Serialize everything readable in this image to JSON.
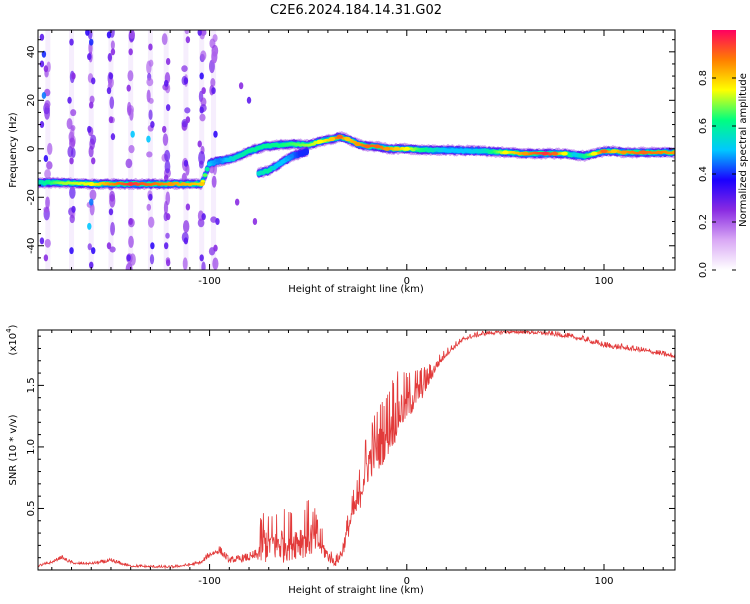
{
  "title": "C2E6.2024.184.14.31.G02",
  "chart_data": [
    {
      "type": "heatmap",
      "xlabel": "Height of straight line (km)",
      "ylabel": "Frequency (Hz)",
      "xlim": [
        -187,
        136
      ],
      "ylim": [
        -50,
        49
      ],
      "x_ticks": [
        -100,
        0,
        100
      ],
      "y_ticks": [
        -40,
        -20,
        0,
        20,
        40
      ],
      "colorbar": {
        "label": "Normalized spectral amplitude",
        "range": [
          0,
          1
        ],
        "ticks": [
          "0.0",
          "0.2",
          "0.4",
          "0.6",
          "0.8"
        ],
        "colors": [
          "#ffffff",
          "#d9a8f5",
          "#8a2be2",
          "#1a00ff",
          "#00c8ff",
          "#00ff80",
          "#ffff00",
          "#ff7f00",
          "#ff0060"
        ]
      },
      "ridge": {
        "x": [
          -187,
          -175,
          -160,
          -140,
          -120,
          -104,
          -100,
          -95,
          -88,
          -80,
          -72,
          -65,
          -58,
          -50,
          -44,
          -38,
          -34,
          -30,
          -25,
          -20,
          -15,
          -10,
          -5,
          0,
          10,
          20,
          30,
          40,
          50,
          60,
          70,
          75,
          80,
          85,
          90,
          95,
          100,
          105,
          110,
          120,
          136
        ],
        "y": [
          -14,
          -14,
          -14.5,
          -14.5,
          -14.5,
          -14.5,
          -6,
          -5,
          -4,
          -1,
          1,
          1.5,
          2,
          1.5,
          3,
          4,
          5,
          4,
          2,
          1,
          1,
          0,
          0,
          0,
          -0.5,
          -0.5,
          -0.8,
          -1,
          -1.5,
          -2,
          -2,
          -2,
          -2,
          -2.5,
          -3,
          -2,
          -1,
          -1,
          -1.5,
          -1.5,
          -1.5
        ],
        "amplitude": [
          0.55,
          0.7,
          0.75,
          0.95,
          0.85,
          0.8,
          0.5,
          0.45,
          0.55,
          0.6,
          0.6,
          0.62,
          0.65,
          0.7,
          0.75,
          0.8,
          0.9,
          0.8,
          0.85,
          0.9,
          0.9,
          0.85,
          0.8,
          0.75,
          0.6,
          0.5,
          0.5,
          0.55,
          0.75,
          0.85,
          0.95,
          0.9,
          0.75,
          0.5,
          0.6,
          0.75,
          0.9,
          0.8,
          0.85,
          0.9,
          0.85
        ]
      },
      "branch": {
        "x": [
          -75,
          -70,
          -66,
          -62,
          -58,
          -54,
          -50
        ],
        "y": [
          -10,
          -9,
          -7,
          -5,
          -3,
          -2,
          -1
        ],
        "amplitude": [
          0.55,
          0.6,
          0.5,
          0.5,
          0.45,
          0.4,
          0.4
        ]
      },
      "noise_columns": [
        -182,
        -170,
        -160,
        -150,
        -140,
        -130,
        -122,
        -112,
        -104,
        -98
      ],
      "noise_specks": [
        [
          -185,
          46,
          0.3
        ],
        [
          -184,
          39,
          0.4
        ],
        [
          -185,
          35,
          0.3
        ],
        [
          -183,
          33,
          0.25
        ],
        [
          -184,
          22,
          0.45
        ],
        [
          -185,
          10,
          0.3
        ],
        [
          -183,
          -4,
          0.35
        ],
        [
          -185,
          -38,
          0.3
        ],
        [
          -183,
          -45,
          0.25
        ],
        [
          -170,
          44,
          0.3
        ],
        [
          -169,
          30,
          0.25
        ],
        [
          -171,
          20,
          0.3
        ],
        [
          -170,
          -5,
          0.25
        ],
        [
          -169,
          -25,
          0.3
        ],
        [
          -170,
          -42,
          0.35
        ],
        [
          -162,
          48,
          0.35
        ],
        [
          -160,
          44,
          0.4
        ],
        [
          -161,
          38,
          0.3
        ],
        [
          -159,
          28,
          0.3
        ],
        [
          -160,
          18,
          0.25
        ],
        [
          -161,
          8,
          0.3
        ],
        [
          -159,
          -5,
          0.25
        ],
        [
          -160,
          -22,
          0.45
        ],
        [
          -161,
          -32,
          0.5
        ],
        [
          -159,
          -42,
          0.35
        ],
        [
          -160,
          -48,
          0.3
        ],
        [
          -151,
          47,
          0.35
        ],
        [
          -149,
          40,
          0.25
        ],
        [
          -150,
          30,
          0.3
        ],
        [
          -151,
          24,
          0.3
        ],
        [
          -150,
          12,
          0.25
        ],
        [
          -149,
          5,
          0.3
        ],
        [
          -150,
          -26,
          0.3
        ],
        [
          -151,
          -40,
          0.25
        ],
        [
          -140,
          40,
          0.25
        ],
        [
          -141,
          25,
          0.25
        ],
        [
          -139,
          6,
          0.5
        ],
        [
          -140,
          -30,
          0.25
        ],
        [
          -141,
          -45,
          0.3
        ],
        [
          -130,
          42,
          0.25
        ],
        [
          -129,
          10,
          0.3
        ],
        [
          -131,
          4,
          0.5
        ],
        [
          -130,
          -20,
          0.3
        ],
        [
          -129,
          -40,
          0.35
        ],
        [
          -121,
          36,
          0.25
        ],
        [
          -122,
          27,
          0.3
        ],
        [
          -121,
          17,
          0.3
        ],
        [
          -123,
          8,
          0.25
        ],
        [
          -122,
          -12,
          0.25
        ],
        [
          -121,
          -28,
          0.25
        ],
        [
          -122,
          -40,
          0.3
        ],
        [
          -121,
          -47,
          0.25
        ],
        [
          -111,
          45,
          0.25
        ],
        [
          -112,
          28,
          0.3
        ],
        [
          -111,
          12,
          0.25
        ],
        [
          -112,
          -6,
          0.3
        ],
        [
          -111,
          -24,
          0.25
        ],
        [
          -112,
          -38,
          0.3
        ],
        [
          -105,
          48,
          0.3
        ],
        [
          -104,
          30,
          0.35
        ],
        [
          -103,
          24,
          0.25
        ],
        [
          -104,
          16,
          0.3
        ],
        [
          -105,
          2,
          0.25
        ],
        [
          -103,
          -28,
          0.3
        ],
        [
          -104,
          -45,
          0.3
        ],
        [
          -98,
          24,
          0.3
        ],
        [
          -97,
          6,
          0.35
        ],
        [
          -96,
          -30,
          0.3
        ],
        [
          -97,
          -41,
          0.25
        ],
        [
          -84,
          26,
          0.25
        ],
        [
          -80,
          20,
          0.3
        ],
        [
          -86,
          -22,
          0.25
        ],
        [
          -77,
          -30,
          0.25
        ]
      ]
    },
    {
      "type": "line",
      "xlabel": "Height of straight line (km)",
      "ylabel": "SNR (10 * v/v)",
      "multiplier_label": "(x10",
      "multiplier_exponent": "4",
      "xlim": [
        -187,
        136
      ],
      "ylim": [
        0,
        19500
      ],
      "x_ticks": [
        -100,
        0,
        100
      ],
      "y_tick_labels": [
        "0.5",
        "1.0",
        "1.5"
      ],
      "y_tick_values": [
        5000,
        10000,
        15000
      ],
      "color": "#e23a3a",
      "envelope": {
        "x": [
          -187,
          -180,
          -175,
          -172,
          -168,
          -160,
          -150,
          -140,
          -130,
          -120,
          -110,
          -104,
          -100,
          -95,
          -90,
          -85,
          -80,
          -76,
          -73,
          -70,
          -65,
          -60,
          -55,
          -50,
          -47,
          -44,
          -40,
          -36,
          -33,
          -30,
          -27,
          -25,
          -22,
          -20,
          -17,
          -14,
          -10,
          -7,
          -3,
          0,
          5,
          10,
          15,
          20,
          25,
          30,
          40,
          50,
          60,
          70,
          80,
          90,
          100,
          110,
          120,
          130,
          136
        ],
        "base": [
          300,
          600,
          1000,
          700,
          500,
          500,
          700,
          300,
          250,
          200,
          400,
          600,
          1200,
          1500,
          700,
          800,
          900,
          1100,
          1500,
          1800,
          1600,
          1800,
          2000,
          2200,
          2100,
          1800,
          1000,
          500,
          1200,
          3000,
          4500,
          5000,
          7000,
          8000,
          9000,
          9500,
          10500,
          11500,
          12500,
          13000,
          14000,
          15000,
          16500,
          17500,
          18200,
          18800,
          19200,
          19300,
          19300,
          19200,
          19000,
          18700,
          18200,
          18000,
          17800,
          17500,
          17300
        ],
        "jitter": [
          150,
          150,
          200,
          200,
          150,
          150,
          250,
          150,
          150,
          150,
          150,
          200,
          400,
          500,
          350,
          400,
          500,
          600,
          4000,
          2500,
          3500,
          3000,
          3000,
          3500,
          3000,
          2000,
          1000,
          600,
          1200,
          1500,
          2000,
          2500,
          3000,
          3500,
          3500,
          4000,
          4000,
          4500,
          3500,
          3000,
          2500,
          1500,
          800,
          500,
          400,
          300,
          300,
          300,
          250,
          300,
          300,
          300,
          350,
          350,
          300,
          300,
          300
        ]
      },
      "n_points": 1400
    }
  ]
}
